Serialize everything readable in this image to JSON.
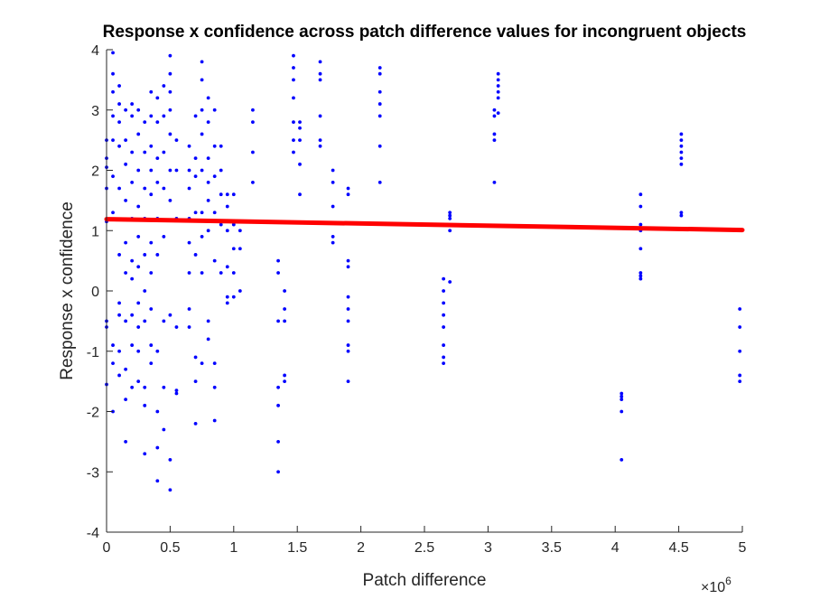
{
  "chart_data": {
    "type": "scatter",
    "title": "Response x confidence across patch difference values for incongruent objects",
    "xlabel": "Patch difference",
    "ylabel": "Response x confidence",
    "x_exponent_label": "×10",
    "x_exponent_power": "6",
    "xlim": [
      0,
      5
    ],
    "ylim": [
      -4,
      4
    ],
    "x_ticks": [
      0,
      0.5,
      1,
      1.5,
      2,
      2.5,
      3,
      3.5,
      4,
      4.5,
      5
    ],
    "x_tick_labels": [
      "0",
      "0.5",
      "1",
      "1.5",
      "2",
      "2.5",
      "3",
      "3.5",
      "4",
      "4.5",
      "5"
    ],
    "y_ticks": [
      -4,
      -3,
      -2,
      -1,
      0,
      1,
      2,
      3,
      4
    ],
    "y_tick_labels": [
      "-4",
      "-3",
      "-2",
      "-1",
      "0",
      "1",
      "2",
      "3",
      "4"
    ],
    "grid": false,
    "colors": {
      "points": "#0000ff",
      "fit": "#ff0000",
      "axes": "#262626"
    },
    "fit_line": {
      "x": [
        0,
        5
      ],
      "y": [
        1.19,
        1.01
      ]
    },
    "series": [
      {
        "x": [
          0.0,
          0.0,
          0.0,
          0.0,
          0.0,
          0.0,
          0.0,
          0.0,
          0.05,
          0.05,
          0.05,
          0.05,
          0.05,
          0.05,
          0.05,
          0.05,
          0.05,
          0.05,
          0.1,
          0.1,
          0.1,
          0.1,
          0.1,
          0.1,
          0.1,
          0.1,
          0.1,
          0.1,
          0.15,
          0.15,
          0.15,
          0.15,
          0.15,
          0.15,
          0.15,
          0.15,
          0.15,
          0.15,
          0.2,
          0.2,
          0.2,
          0.2,
          0.2,
          0.2,
          0.2,
          0.2,
          0.2,
          0.2,
          0.25,
          0.25,
          0.25,
          0.25,
          0.25,
          0.25,
          0.25,
          0.25,
          0.25,
          0.25,
          0.3,
          0.3,
          0.3,
          0.3,
          0.3,
          0.3,
          0.3,
          0.3,
          0.3,
          0.3,
          0.35,
          0.35,
          0.35,
          0.35,
          0.35,
          0.35,
          0.35,
          0.35,
          0.35,
          0.35,
          0.4,
          0.4,
          0.4,
          0.4,
          0.4,
          0.4,
          0.4,
          0.4,
          0.4,
          0.4,
          0.45,
          0.45,
          0.45,
          0.45,
          0.45,
          0.45,
          0.45,
          0.45,
          0.5,
          0.5,
          0.5,
          0.5,
          0.5,
          0.5,
          0.5,
          0.5,
          0.5,
          0.5,
          0.55,
          0.55,
          0.55,
          0.55,
          0.55,
          0.55,
          0.65,
          0.65,
          0.65,
          0.65,
          0.65,
          0.65,
          0.65,
          0.65,
          0.7,
          0.7,
          0.7,
          0.7,
          0.7,
          0.7,
          0.7,
          0.7,
          0.75,
          0.75,
          0.75,
          0.75,
          0.75,
          0.75,
          0.75,
          0.75,
          0.75,
          0.8,
          0.8,
          0.8,
          0.8,
          0.8,
          0.8,
          0.8,
          0.8,
          0.85,
          0.85,
          0.85,
          0.85,
          0.85,
          0.85,
          0.85,
          0.85,
          0.9,
          0.9,
          0.9,
          0.9,
          0.9,
          0.95,
          0.95,
          0.95,
          0.95,
          0.95,
          0.95,
          1.0,
          1.0,
          1.0,
          1.0,
          1.0,
          1.05,
          1.05,
          1.05,
          1.15,
          1.15,
          1.15,
          1.15,
          1.35,
          1.35,
          1.35,
          1.35,
          1.35,
          1.35,
          1.35,
          1.4,
          1.4,
          1.4,
          1.4,
          1.4,
          1.47,
          1.47,
          1.47,
          1.47,
          1.47,
          1.47,
          1.47,
          1.52,
          1.52,
          1.52,
          1.52,
          1.52,
          1.68,
          1.68,
          1.68,
          1.68,
          1.68,
          1.68,
          1.78,
          1.78,
          1.78,
          1.78,
          1.78,
          1.9,
          1.9,
          1.9,
          1.9,
          1.9,
          1.9,
          1.9,
          1.9,
          1.9,
          1.9,
          2.15,
          2.15,
          2.15,
          2.15,
          2.15,
          2.15,
          2.15,
          2.65,
          2.65,
          2.65,
          2.65,
          2.65,
          2.65,
          2.65,
          2.65,
          2.7,
          2.7,
          2.7,
          2.7,
          2.7,
          3.05,
          3.05,
          3.05,
          3.05,
          3.05,
          3.08,
          3.08,
          3.08,
          3.08,
          3.08,
          3.08,
          4.05,
          4.05,
          4.05,
          4.05,
          4.05,
          4.2,
          4.2,
          4.2,
          4.2,
          4.2,
          4.2,
          4.2,
          4.2,
          4.52,
          4.52,
          4.52,
          4.52,
          4.52,
          4.52,
          4.52,
          4.52,
          4.98,
          4.98,
          4.98,
          4.98,
          4.98
        ],
        "y": [
          2.5,
          2.2,
          1.7,
          1.15,
          -0.5,
          -0.6,
          -1.55,
          2.05,
          3.95,
          3.6,
          3.3,
          2.9,
          2.5,
          1.9,
          1.3,
          -0.9,
          -1.2,
          -2.0,
          3.4,
          3.1,
          2.8,
          2.4,
          1.7,
          0.6,
          -0.2,
          -0.4,
          -1.0,
          -1.4,
          3.0,
          2.5,
          2.1,
          1.5,
          0.8,
          0.3,
          -0.5,
          -1.3,
          -1.8,
          -2.5,
          3.1,
          2.9,
          2.3,
          1.8,
          1.2,
          0.5,
          0.2,
          -0.4,
          -0.9,
          -1.6,
          3.0,
          2.6,
          2.0,
          1.4,
          0.9,
          0.4,
          -0.2,
          -0.6,
          -1.0,
          -1.5,
          2.8,
          2.3,
          1.7,
          1.2,
          0.6,
          0.0,
          -0.5,
          -1.6,
          -1.9,
          -2.7,
          3.3,
          2.9,
          2.4,
          2.0,
          1.6,
          0.8,
          0.3,
          -0.3,
          -0.9,
          -1.2,
          3.2,
          2.8,
          2.2,
          1.8,
          1.2,
          0.6,
          -1.0,
          -2.0,
          -2.6,
          -3.15,
          3.4,
          2.9,
          2.3,
          1.7,
          0.9,
          -0.5,
          -1.6,
          -2.3,
          3.9,
          3.6,
          3.3,
          3.0,
          2.6,
          2.0,
          1.5,
          -0.4,
          -2.8,
          -3.3,
          2.5,
          2.0,
          1.2,
          -0.6,
          -1.7,
          -1.65,
          2.4,
          2.0,
          1.7,
          1.2,
          0.8,
          0.3,
          -0.3,
          -0.6,
          2.9,
          2.2,
          1.9,
          1.3,
          0.6,
          -1.1,
          -1.5,
          -2.2,
          3.8,
          3.5,
          3.0,
          2.6,
          2.0,
          1.3,
          0.9,
          0.3,
          -1.2,
          3.2,
          2.8,
          2.2,
          1.8,
          1.5,
          1.0,
          -0.5,
          -0.8,
          3.0,
          2.4,
          1.9,
          1.3,
          0.5,
          -1.2,
          -1.6,
          -2.15,
          2.4,
          2.0,
          1.6,
          1.1,
          0.3,
          1.6,
          1.4,
          1.0,
          0.4,
          -0.1,
          -0.2,
          1.6,
          1.1,
          0.7,
          0.3,
          -0.1,
          1.0,
          0.7,
          0.0,
          3.0,
          2.8,
          2.3,
          1.8,
          0.5,
          0.3,
          -0.5,
          -1.6,
          -1.9,
          -2.5,
          -3.0,
          0.0,
          -0.3,
          -0.5,
          -1.4,
          -1.5,
          3.9,
          3.7,
          3.5,
          3.2,
          2.8,
          2.5,
          2.3,
          2.8,
          2.7,
          2.5,
          2.1,
          1.6,
          3.8,
          3.6,
          3.5,
          2.9,
          2.5,
          2.4,
          2.0,
          1.8,
          1.4,
          0.9,
          0.8,
          1.7,
          1.6,
          0.5,
          0.4,
          -0.1,
          -0.3,
          -0.5,
          -0.9,
          -1.0,
          -1.5,
          3.7,
          3.6,
          3.3,
          3.1,
          2.9,
          2.4,
          1.8,
          0.2,
          0.0,
          -0.2,
          -0.4,
          -0.6,
          -0.9,
          -1.1,
          -1.2,
          1.3,
          1.25,
          1.2,
          1.0,
          0.15,
          3.0,
          2.9,
          2.6,
          2.5,
          1.8,
          3.6,
          3.5,
          3.4,
          3.3,
          3.2,
          2.95,
          -1.7,
          -1.75,
          -1.8,
          -2.0,
          -2.8,
          1.6,
          1.4,
          1.1,
          1.0,
          0.7,
          0.3,
          0.25,
          0.2,
          2.6,
          2.5,
          2.4,
          2.3,
          2.2,
          2.1,
          1.3,
          1.25,
          -0.3,
          -0.6,
          -1.0,
          -1.4,
          -1.5
        ]
      }
    ]
  }
}
